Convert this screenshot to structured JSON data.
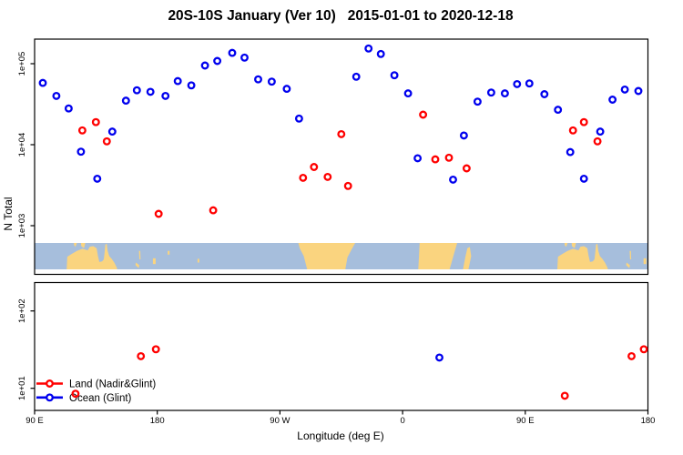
{
  "chart_data": {
    "type": "scatter",
    "title": "20S-10S January (Ver 10)   2015-01-01 to 2020-12-18",
    "xlabel": "Longitude (deg E)",
    "ylabel": "N Total",
    "x_axis": {
      "lim": [
        90,
        540
      ],
      "note": "longitude wraps eastward: 90E -> 180 -> 90W -> 0 -> 90E -> 180",
      "ticks": [
        {
          "v": 90,
          "label": "90 E"
        },
        {
          "v": 180,
          "label": "180"
        },
        {
          "v": 270,
          "label": "90 W"
        },
        {
          "v": 360,
          "label": "0"
        },
        {
          "v": 450,
          "label": "90 E"
        },
        {
          "v": 540,
          "label": "180"
        }
      ]
    },
    "y_axis": {
      "scale": "log10",
      "lim": [
        10,
        200000
      ],
      "ticks": [
        {
          "v": 10,
          "label": "1e+01"
        },
        {
          "v": 100,
          "label": "1e+02"
        },
        {
          "v": 1000,
          "label": "1e+03"
        },
        {
          "v": 10000,
          "label": "1e+04"
        },
        {
          "v": 100000,
          "label": "1e+05"
        }
      ],
      "panel_split": "upper panel shows N >= ~1e+03, lower panel shows N <= ~1e+02, world-map band drawn between panels"
    },
    "series": [
      {
        "name": "Land (Nadir&Glint)",
        "color": "#ff0000",
        "marker": "open-circle",
        "points": [
          [
            125,
            15000
          ],
          [
            135,
            19000
          ],
          [
            143,
            11000
          ],
          [
            181,
            1400
          ],
          [
            221,
            1550
          ],
          [
            287,
            3900
          ],
          [
            295,
            5300
          ],
          [
            305,
            4000
          ],
          [
            315,
            13500
          ],
          [
            320,
            3100
          ],
          [
            375,
            23500
          ],
          [
            384,
            6600
          ],
          [
            394,
            6900
          ],
          [
            407,
            5100
          ],
          [
            485,
            15000
          ],
          [
            493,
            19000
          ],
          [
            503,
            11000
          ],
          [
            120,
            8.5
          ],
          [
            168,
            26
          ],
          [
            179,
            32
          ],
          [
            479,
            8
          ],
          [
            528,
            26
          ],
          [
            537,
            32
          ]
        ]
      },
      {
        "name": "Ocean (Glint)",
        "color": "#0000ee",
        "marker": "open-circle",
        "points": [
          [
            96,
            58000
          ],
          [
            106,
            40000
          ],
          [
            115,
            28000
          ],
          [
            124,
            8200
          ],
          [
            136,
            3800
          ],
          [
            147,
            14500
          ],
          [
            157,
            35000
          ],
          [
            165,
            47000
          ],
          [
            175,
            45000
          ],
          [
            186,
            40000
          ],
          [
            195,
            61000
          ],
          [
            205,
            54000
          ],
          [
            215,
            95000
          ],
          [
            224,
            108000
          ],
          [
            235,
            136000
          ],
          [
            244,
            119000
          ],
          [
            254,
            64000
          ],
          [
            264,
            60000
          ],
          [
            275,
            49000
          ],
          [
            284,
            21000
          ],
          [
            326,
            69000
          ],
          [
            335,
            154000
          ],
          [
            344,
            132000
          ],
          [
            354,
            72000
          ],
          [
            364,
            43000
          ],
          [
            371,
            6800
          ],
          [
            397,
            3700
          ],
          [
            405,
            13000
          ],
          [
            415,
            34000
          ],
          [
            425,
            44000
          ],
          [
            435,
            43000
          ],
          [
            444,
            56000
          ],
          [
            453,
            57000
          ],
          [
            464,
            42000
          ],
          [
            474,
            27000
          ],
          [
            483,
            8100
          ],
          [
            493,
            3800
          ],
          [
            505,
            14500
          ],
          [
            514,
            36000
          ],
          [
            523,
            48000
          ],
          [
            533,
            46000
          ],
          [
            387,
            25
          ]
        ]
      }
    ],
    "map_strip": {
      "band": "20S-10S",
      "ocean_color": "#a6bedc",
      "land_color": "#fad47f",
      "land": [
        {
          "name": "australia",
          "pts": [
            [
              113.5,
              1
            ],
            [
              114,
              0.52
            ],
            [
              117,
              0.42
            ],
            [
              121,
              0.3
            ],
            [
              125,
              0.22
            ],
            [
              129,
              0.28
            ],
            [
              130.5,
              0.14
            ],
            [
              133,
              0.12
            ],
            [
              135.5,
              0.2
            ],
            [
              136.5,
              0.5
            ],
            [
              137.5,
              0.72
            ],
            [
              139.5,
              0.7
            ],
            [
              140.8,
              0.62
            ],
            [
              141.4,
              0.35
            ],
            [
              141.9,
              0.06
            ],
            [
              142.9,
              0.03
            ],
            [
              143.6,
              0.3
            ],
            [
              144.8,
              0.5
            ],
            [
              146.5,
              0.6
            ],
            [
              148.5,
              0.75
            ],
            [
              150.2,
              0.92
            ],
            [
              150.7,
              1
            ]
          ]
        },
        {
          "name": "timor",
          "pts": [
            [
              124,
              0
            ],
            [
              127.2,
              0
            ],
            [
              126.2,
              0.2
            ],
            [
              124.3,
              0.12
            ]
          ]
        },
        {
          "name": "sumba",
          "pts": [
            [
              118.8,
              0
            ],
            [
              121,
              0
            ],
            [
              120,
              0.15
            ],
            [
              118.9,
              0.08
            ]
          ]
        },
        {
          "name": "new-caledonia",
          "pts": [
            [
              164.3,
              0.74
            ],
            [
              166.8,
              0.84
            ],
            [
              166.4,
              0.95
            ],
            [
              164,
              0.84
            ]
          ]
        },
        {
          "name": "vanuatu",
          "pts": [
            [
              166.6,
              0.3
            ],
            [
              167.5,
              0.3
            ],
            [
              167.7,
              0.62
            ],
            [
              166.9,
              0.62
            ]
          ]
        },
        {
          "name": "fiji",
          "pts": [
            [
              176.8,
              0.58
            ],
            [
              178.8,
              0.58
            ],
            [
              178.8,
              0.8
            ],
            [
              176.8,
              0.8
            ]
          ]
        },
        {
          "name": "samoa",
          "pts": [
            [
              187.6,
              0.3
            ],
            [
              189,
              0.3
            ],
            [
              189,
              0.44
            ],
            [
              187.6,
              0.44
            ]
          ]
        },
        {
          "name": "society-islands",
          "pts": [
            [
              209.5,
              0.6
            ],
            [
              210.8,
              0.6
            ],
            [
              210.8,
              0.74
            ],
            [
              209.5,
              0.74
            ]
          ]
        },
        {
          "name": "south-america",
          "pts": [
            [
              283.5,
              0
            ],
            [
              325.2,
              0
            ],
            [
              322.5,
              0.25
            ],
            [
              319.5,
              0.55
            ],
            [
              318,
              1
            ],
            [
              290,
              1
            ],
            [
              287.5,
              0.5
            ],
            [
              284.5,
              0.2
            ]
          ]
        },
        {
          "name": "africa",
          "pts": [
            [
              372.5,
              0
            ],
            [
              400,
              0
            ],
            [
              397.5,
              0.45
            ],
            [
              394.5,
              1
            ],
            [
              371.5,
              1
            ],
            [
              372,
              0.5
            ]
          ]
        },
        {
          "name": "madagascar",
          "pts": [
            [
              409.3,
              0.15
            ],
            [
              410.3,
              0.5
            ],
            [
              408.3,
              1
            ],
            [
              404.3,
              1
            ],
            [
              406,
              0.55
            ],
            [
              407.5,
              0.2
            ]
          ]
        }
      ]
    }
  },
  "legend": {
    "items": [
      {
        "label": "Land (Nadir&Glint)",
        "color": "#ff0000"
      },
      {
        "label": "Ocean (Glint)",
        "color": "#0000ee"
      }
    ]
  }
}
